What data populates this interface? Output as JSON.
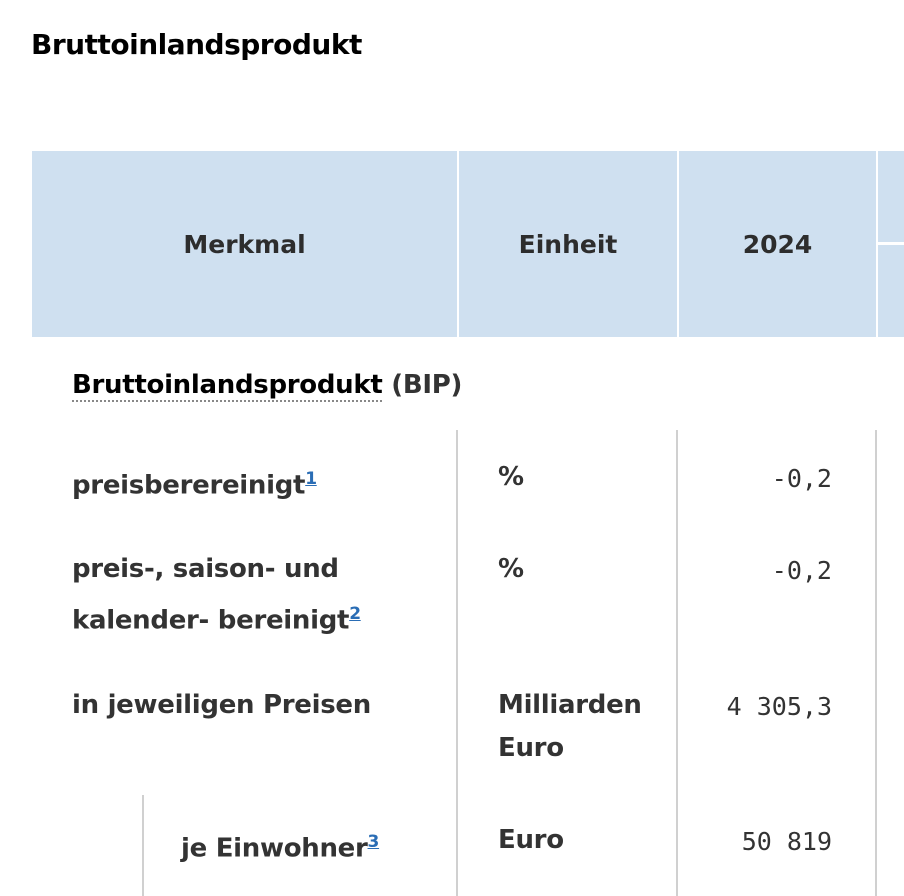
{
  "title": "Bruttoinlandsprodukt",
  "table": {
    "headers": [
      "Merkmal",
      "Einheit",
      "2024"
    ],
    "section": {
      "label": "Bruttoinlandsprodukt",
      "abbr": "(BIP)"
    },
    "rows": [
      {
        "label": "preisberereinigt",
        "footnote": "1",
        "unit": "%",
        "value": "-0,2"
      },
      {
        "label_line1": "preis-, saison- und",
        "label_line2": "kalender- bereinigt",
        "footnote": "2",
        "unit": "%",
        "value": "-0,2"
      },
      {
        "label": "in jeweiligen Preisen",
        "unit_line1": "Milliarden",
        "unit_line2": "Euro",
        "value": "4 305,3"
      },
      {
        "label": "je Einwohner",
        "footnote": "3",
        "unit": "Euro",
        "value": "50 819"
      }
    ]
  },
  "colors": {
    "header_bg": "#cfe0f0",
    "link": "#2a6db5"
  }
}
